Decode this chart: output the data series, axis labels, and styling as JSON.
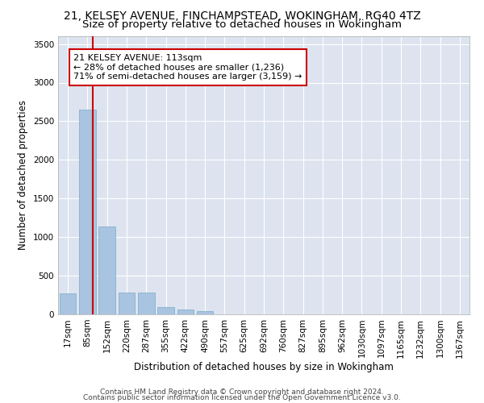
{
  "title_line1": "21, KELSEY AVENUE, FINCHAMPSTEAD, WOKINGHAM, RG40 4TZ",
  "title_line2": "Size of property relative to detached houses in Wokingham",
  "xlabel": "Distribution of detached houses by size in Wokingham",
  "ylabel": "Number of detached properties",
  "categories": [
    "17sqm",
    "85sqm",
    "152sqm",
    "220sqm",
    "287sqm",
    "355sqm",
    "422sqm",
    "490sqm",
    "557sqm",
    "625sqm",
    "692sqm",
    "760sqm",
    "827sqm",
    "895sqm",
    "962sqm",
    "1030sqm",
    "1097sqm",
    "1165sqm",
    "1232sqm",
    "1300sqm",
    "1367sqm"
  ],
  "values": [
    270,
    2650,
    1140,
    280,
    280,
    95,
    60,
    40,
    0,
    0,
    0,
    0,
    0,
    0,
    0,
    0,
    0,
    0,
    0,
    0,
    0
  ],
  "bar_color": "#a8c4e0",
  "bar_edge_color": "#7aaac8",
  "background_color": "#dde4f0",
  "grid_color": "#ffffff",
  "red_line_x": 1.28,
  "annotation_text": "21 KELSEY AVENUE: 113sqm\n← 28% of detached houses are smaller (1,236)\n71% of semi-detached houses are larger (3,159) →",
  "annotation_box_color": "#ffffff",
  "annotation_border_color": "#cc0000",
  "footer_line1": "Contains HM Land Registry data © Crown copyright and database right 2024.",
  "footer_line2": "Contains public sector information licensed under the Open Government Licence v3.0.",
  "ylim": [
    0,
    3600
  ],
  "yticks": [
    0,
    500,
    1000,
    1500,
    2000,
    2500,
    3000,
    3500
  ],
  "title_fontsize": 10,
  "subtitle_fontsize": 9.5,
  "axis_label_fontsize": 8.5,
  "tick_fontsize": 7.5,
  "annotation_fontsize": 8,
  "footer_fontsize": 6.5
}
